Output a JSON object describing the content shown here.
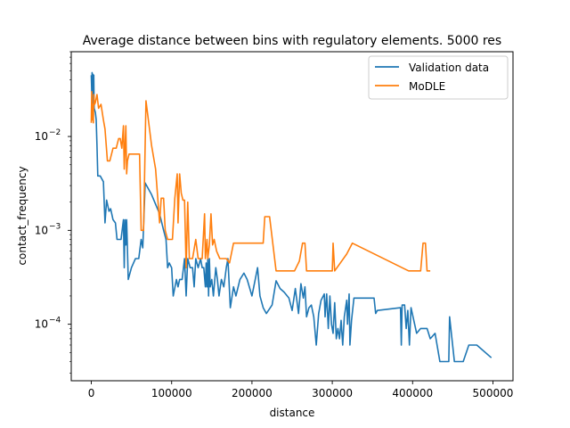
{
  "chart_data": {
    "type": "line",
    "title": "Average distance between bins with regulatory elements. 5000 res",
    "xlabel": "distance",
    "ylabel": "contact_frequency",
    "xlim": [
      -25000,
      525000
    ],
    "ylim": [
      2.5e-05,
      0.08
    ],
    "yscale": "log",
    "grid": false,
    "legend_position": "top-right",
    "x_ticks": [
      0,
      100000,
      200000,
      300000,
      400000,
      500000
    ],
    "x_tick_labels": [
      "0",
      "100000",
      "200000",
      "300000",
      "400000",
      "500000"
    ],
    "y_ticks": [
      0.0001,
      0.001,
      0.01
    ],
    "y_tick_labels": [
      "10",
      "10",
      "10"
    ],
    "y_tick_exponents": [
      "−4",
      "−3",
      "−2"
    ],
    "series": [
      {
        "name": "Validation data",
        "color": "#1f77b4",
        "points": [
          [
            0,
            0.045
          ],
          [
            500,
            0.03
          ],
          [
            1000,
            0.048
          ],
          [
            1500,
            0.02
          ],
          [
            2000,
            0.046
          ],
          [
            2500,
            0.025
          ],
          [
            3000,
            0.045
          ],
          [
            3500,
            0.02
          ],
          [
            5000,
            0.018
          ],
          [
            6000,
            0.015
          ],
          [
            7000,
            0.008
          ],
          [
            8000,
            0.0038
          ],
          [
            11000,
            0.0038
          ],
          [
            15000,
            0.0033
          ],
          [
            17000,
            0.0012
          ],
          [
            19000,
            0.0021
          ],
          [
            22000,
            0.0016
          ],
          [
            24000,
            0.0017
          ],
          [
            27000,
            0.0013
          ],
          [
            30000,
            0.0012
          ],
          [
            32000,
            0.0008
          ],
          [
            37000,
            0.0008
          ],
          [
            40000,
            0.0013
          ],
          [
            41000,
            0.0004
          ],
          [
            42000,
            0.0013
          ],
          [
            43000,
            0.0007
          ],
          [
            44000,
            0.0013
          ],
          [
            46000,
            0.0003
          ],
          [
            50000,
            0.0004
          ],
          [
            55000,
            0.0005
          ],
          [
            59000,
            0.0005
          ],
          [
            62000,
            0.0008
          ],
          [
            64000,
            0.00065
          ],
          [
            67000,
            0.0032
          ],
          [
            75000,
            0.0024
          ],
          [
            85000,
            0.0015
          ],
          [
            90000,
            0.001
          ],
          [
            93000,
            0.0008
          ],
          [
            95000,
            0.0004
          ],
          [
            97000,
            0.00045
          ],
          [
            100000,
            0.0004
          ],
          [
            102000,
            0.0002
          ],
          [
            106000,
            0.0003
          ],
          [
            108000,
            0.00025
          ],
          [
            110000,
            0.0003
          ],
          [
            113000,
            0.0003
          ],
          [
            116000,
            0.0005
          ],
          [
            118000,
            0.0002
          ],
          [
            120000,
            0.0005
          ],
          [
            123000,
            0.0004
          ],
          [
            126000,
            0.0004
          ],
          [
            128000,
            0.00025
          ],
          [
            130000,
            0.0005
          ],
          [
            133000,
            0.0004
          ],
          [
            136000,
            0.0005
          ],
          [
            138000,
            0.0004
          ],
          [
            140000,
            0.0004
          ],
          [
            142000,
            0.00025
          ],
          [
            143000,
            0.00045
          ],
          [
            144000,
            0.00025
          ],
          [
            145000,
            0.0005
          ],
          [
            146000,
            0.0002
          ],
          [
            147000,
            0.0005
          ],
          [
            148000,
            0.00025
          ],
          [
            150000,
            0.0003
          ],
          [
            152000,
            0.0002
          ],
          [
            155000,
            0.0004
          ],
          [
            157000,
            0.0003
          ],
          [
            159000,
            0.0002
          ],
          [
            162000,
            0.0003
          ],
          [
            165000,
            0.00025
          ],
          [
            168000,
            0.0004
          ],
          [
            170000,
            0.0005
          ],
          [
            173000,
            0.00015
          ],
          [
            177000,
            0.00025
          ],
          [
            180000,
            0.0002
          ],
          [
            185000,
            0.0003
          ],
          [
            190000,
            0.00035
          ],
          [
            194000,
            0.0003
          ],
          [
            200000,
            0.0002
          ],
          [
            207000,
            0.0004
          ],
          [
            210000,
            0.0002
          ],
          [
            214000,
            0.00015
          ],
          [
            218000,
            0.00013
          ],
          [
            225000,
            0.00016
          ],
          [
            230000,
            0.00029
          ],
          [
            235000,
            0.00024
          ],
          [
            240000,
            0.00022
          ],
          [
            246000,
            0.00019
          ],
          [
            250000,
            0.00014
          ],
          [
            254000,
            0.00024
          ],
          [
            258000,
            0.00013
          ],
          [
            261000,
            0.00027
          ],
          [
            264000,
            0.00019
          ],
          [
            266000,
            0.00025
          ],
          [
            268000,
            0.00012
          ],
          [
            271000,
            0.00015
          ],
          [
            274000,
            0.00016
          ],
          [
            277000,
            0.00012
          ],
          [
            280000,
            6e-05
          ],
          [
            283000,
            0.00013
          ],
          [
            286000,
            0.00018
          ],
          [
            290000,
            0.00021
          ],
          [
            291000,
            0.00012
          ],
          [
            293000,
            0.00021
          ],
          [
            295000,
            9e-05
          ],
          [
            297000,
            0.0002
          ],
          [
            299000,
            0.0001
          ],
          [
            301000,
            8e-05
          ],
          [
            303000,
            0.00017
          ],
          [
            305000,
            7e-05
          ],
          [
            307000,
            9e-05
          ],
          [
            309000,
            7e-05
          ],
          [
            311000,
            0.00011
          ],
          [
            313000,
            6e-05
          ],
          [
            315000,
            0.00012
          ],
          [
            318000,
            0.00018
          ],
          [
            319000,
            0.0001
          ],
          [
            321000,
            0.00021
          ],
          [
            322000,
            6e-05
          ],
          [
            324000,
            0.00011
          ],
          [
            327000,
            0.00019
          ],
          [
            352000,
            0.00019
          ],
          [
            354000,
            0.00013
          ],
          [
            356000,
            0.00014
          ],
          [
            385000,
            0.00015
          ],
          [
            386000,
            6e-05
          ],
          [
            387000,
            0.00016
          ],
          [
            390000,
            0.00016
          ],
          [
            392000,
            9e-05
          ],
          [
            394000,
            0.00014
          ],
          [
            396000,
            6e-05
          ],
          [
            398000,
            0.00015
          ],
          [
            405000,
            8e-05
          ],
          [
            410000,
            9e-05
          ],
          [
            418000,
            9e-05
          ],
          [
            422000,
            7e-05
          ],
          [
            428000,
            8e-05
          ],
          [
            434000,
            4e-05
          ],
          [
            445000,
            4e-05
          ],
          [
            446000,
            0.00012
          ],
          [
            452000,
            4e-05
          ],
          [
            463000,
            4e-05
          ],
          [
            470000,
            6e-05
          ],
          [
            480000,
            6e-05
          ],
          [
            498000,
            4.4e-05
          ]
        ]
      },
      {
        "name": "MoDLE",
        "color": "#ff7f0e",
        "points": [
          [
            0,
            0.014
          ],
          [
            500,
            0.03
          ],
          [
            1000,
            0.015
          ],
          [
            1500,
            0.022
          ],
          [
            2000,
            0.02
          ],
          [
            2500,
            0.014
          ],
          [
            3000,
            0.028
          ],
          [
            4000,
            0.022
          ],
          [
            5000,
            0.023
          ],
          [
            7000,
            0.028
          ],
          [
            9000,
            0.02
          ],
          [
            12000,
            0.022
          ],
          [
            15000,
            0.015
          ],
          [
            17000,
            0.012
          ],
          [
            20000,
            0.0055
          ],
          [
            23000,
            0.0055
          ],
          [
            27000,
            0.0075
          ],
          [
            31000,
            0.0075
          ],
          [
            34000,
            0.0095
          ],
          [
            36000,
            0.0095
          ],
          [
            38000,
            0.0075
          ],
          [
            40000,
            0.013
          ],
          [
            41000,
            0.0045
          ],
          [
            43000,
            0.013
          ],
          [
            44000,
            0.004
          ],
          [
            45000,
            0.0055
          ],
          [
            47000,
            0.0065
          ],
          [
            55000,
            0.0065
          ],
          [
            60000,
            0.0065
          ],
          [
            62000,
            0.001
          ],
          [
            65000,
            0.001
          ],
          [
            68000,
            0.024
          ],
          [
            75000,
            0.008
          ],
          [
            80000,
            0.0045
          ],
          [
            85000,
            0.0012
          ],
          [
            87000,
            0.0022
          ],
          [
            90000,
            0.0022
          ],
          [
            92000,
            0.001
          ],
          [
            95000,
            0.0008
          ],
          [
            101000,
            0.0008
          ],
          [
            104000,
            0.0022
          ],
          [
            107000,
            0.004
          ],
          [
            108000,
            0.0012
          ],
          [
            110000,
            0.004
          ],
          [
            112000,
            0.0025
          ],
          [
            114000,
            0.0021
          ],
          [
            116000,
            0.0021
          ],
          [
            118000,
            0.0004
          ],
          [
            120000,
            0.002
          ],
          [
            122000,
            0.0005
          ],
          [
            126000,
            0.0005
          ],
          [
            130000,
            0.0008
          ],
          [
            133000,
            0.0005
          ],
          [
            138000,
            0.0005
          ],
          [
            141000,
            0.0015
          ],
          [
            142000,
            0.0005
          ],
          [
            144000,
            0.0008
          ],
          [
            145000,
            0.0005
          ],
          [
            147000,
            0.0007
          ],
          [
            149000,
            0.0015
          ],
          [
            151000,
            0.0007
          ],
          [
            153000,
            0.0008
          ],
          [
            156000,
            0.0006
          ],
          [
            160000,
            0.0005
          ],
          [
            164000,
            0.0005
          ],
          [
            168000,
            0.0005
          ],
          [
            172000,
            0.00045
          ],
          [
            177000,
            0.00073
          ],
          [
            190000,
            0.00073
          ],
          [
            202000,
            0.00073
          ],
          [
            214000,
            0.00073
          ],
          [
            216000,
            0.0014
          ],
          [
            222000,
            0.0014
          ],
          [
            230000,
            0.00037
          ],
          [
            240000,
            0.00037
          ],
          [
            248000,
            0.00037
          ],
          [
            253000,
            0.00037
          ],
          [
            259000,
            0.00047
          ],
          [
            263000,
            0.00073
          ],
          [
            266000,
            0.00073
          ],
          [
            268000,
            0.00037
          ],
          [
            300000,
            0.00037
          ],
          [
            301000,
            0.00073
          ],
          [
            303000,
            0.00037
          ],
          [
            318000,
            0.00056
          ],
          [
            325000,
            0.00073
          ],
          [
            395000,
            0.00037
          ],
          [
            410000,
            0.00037
          ],
          [
            413000,
            0.00073
          ],
          [
            416000,
            0.00073
          ],
          [
            418000,
            0.00037
          ],
          [
            422000,
            0.00037
          ]
        ]
      }
    ]
  }
}
